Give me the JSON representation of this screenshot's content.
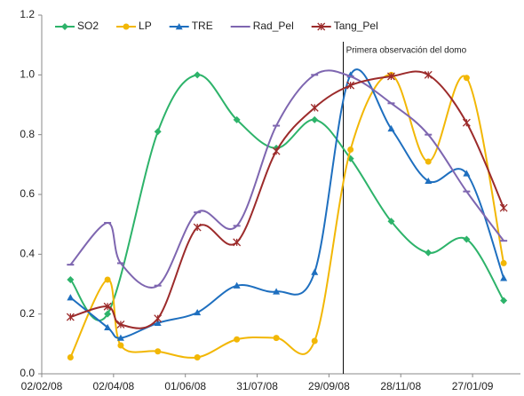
{
  "chart_data": {
    "type": "line",
    "xlim": [
      "2008-02-02",
      "2009-03-08"
    ],
    "xticks": [
      {
        "value": "2008-02-02",
        "label": "02/02/08"
      },
      {
        "value": "2008-04-02",
        "label": "02/04/08"
      },
      {
        "value": "2008-06-01",
        "label": "01/06/08"
      },
      {
        "value": "2008-07-31",
        "label": "31/07/08"
      },
      {
        "value": "2008-09-29",
        "label": "29/09/08"
      },
      {
        "value": "2008-11-28",
        "label": "28/11/08"
      },
      {
        "value": "2009-01-27",
        "label": "27/01/09"
      }
    ],
    "ylim": [
      0,
      1.2
    ],
    "yticks": [
      {
        "value": 0,
        "label": "0.0"
      },
      {
        "value": 0.2,
        "label": "0.2"
      },
      {
        "value": 0.4,
        "label": "0.4"
      },
      {
        "value": 0.6,
        "label": "0.6"
      },
      {
        "value": 0.8,
        "label": "0.8"
      },
      {
        "value": 1.0,
        "label": "1.0"
      },
      {
        "value": 1.2,
        "label": "1.2"
      }
    ],
    "grid": false,
    "legend": "top",
    "smooth": true,
    "annotation": {
      "x": "2008-10-11",
      "label": "Primera observación del domo"
    },
    "series": [
      {
        "name": "SO2",
        "color": "#2db36a",
        "marker": "diamond",
        "x": [
          "2008-02-26",
          "2008-03-28",
          "2008-05-09",
          "2008-06-11",
          "2008-07-14",
          "2008-08-16",
          "2008-09-17",
          "2008-10-17",
          "2008-11-20",
          "2008-12-21",
          "2009-01-22",
          "2009-02-22"
        ],
        "values": [
          0.315,
          0.2,
          0.81,
          1.0,
          0.85,
          0.755,
          0.85,
          0.72,
          0.51,
          0.405,
          0.45,
          0.245
        ]
      },
      {
        "name": "LP",
        "color": "#f2b705",
        "marker": "circle",
        "x": [
          "2008-02-26",
          "2008-03-28",
          "2008-04-08",
          "2008-05-09",
          "2008-06-11",
          "2008-07-14",
          "2008-08-16",
          "2008-09-17",
          "2008-10-17",
          "2008-11-20",
          "2008-12-21",
          "2009-01-22",
          "2009-02-22"
        ],
        "values": [
          0.055,
          0.315,
          0.095,
          0.075,
          0.055,
          0.115,
          0.12,
          0.11,
          0.75,
          1.0,
          0.71,
          0.99,
          0.37
        ]
      },
      {
        "name": "TRE",
        "color": "#1e6fbf",
        "marker": "triangle",
        "x": [
          "2008-02-26",
          "2008-03-28",
          "2008-04-08",
          "2008-05-09",
          "2008-06-11",
          "2008-07-14",
          "2008-08-16",
          "2008-09-17",
          "2008-10-17",
          "2008-11-20",
          "2008-12-21",
          "2009-01-22",
          "2009-02-22"
        ],
        "values": [
          0.255,
          0.155,
          0.12,
          0.17,
          0.205,
          0.295,
          0.275,
          0.34,
          1.0,
          0.82,
          0.645,
          0.67,
          0.32
        ]
      },
      {
        "name": "Rad_Pel",
        "color": "#7e66b0",
        "marker": "dash",
        "x": [
          "2008-02-26",
          "2008-03-28",
          "2008-04-08",
          "2008-05-09",
          "2008-06-11",
          "2008-07-14",
          "2008-08-16",
          "2008-09-17",
          "2008-10-17",
          "2008-11-20",
          "2008-12-21",
          "2009-01-22",
          "2009-02-22"
        ],
        "values": [
          0.365,
          0.505,
          0.37,
          0.295,
          0.54,
          0.495,
          0.83,
          1.0,
          0.995,
          0.905,
          0.8,
          0.61,
          0.445
        ]
      },
      {
        "name": "Tang_Pel",
        "color": "#9c2b2b",
        "marker": "star",
        "x": [
          "2008-02-26",
          "2008-03-28",
          "2008-04-08",
          "2008-05-09",
          "2008-06-11",
          "2008-07-14",
          "2008-08-16",
          "2008-09-17",
          "2008-10-17",
          "2008-11-20",
          "2008-12-21",
          "2009-01-22",
          "2009-02-22"
        ],
        "values": [
          0.19,
          0.225,
          0.165,
          0.185,
          0.49,
          0.44,
          0.745,
          0.89,
          0.965,
          0.995,
          1.0,
          0.84,
          0.555
        ]
      }
    ]
  }
}
